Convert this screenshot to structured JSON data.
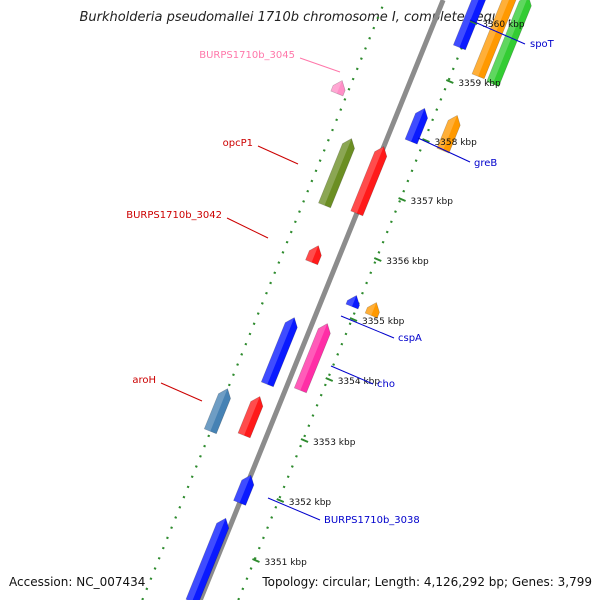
{
  "title": "Burkholderia pseudomallei 1710b chromosome I, complete seque...",
  "footer": {
    "accession": "Accession: NC_007434",
    "summary": "Topology: circular; Length: 4,126,292 bp; Genes: 3,799"
  },
  "colors": {
    "backbone": "#8c8c8c",
    "ticks": "#2e8b2e",
    "forward_label": "#0000cc",
    "reverse_label": "#cc0000",
    "pseudo_label": "#ff77aa",
    "kbp_label": "#111111"
  },
  "scale_labels": [
    "3351 kbp",
    "3352 kbp",
    "3353 kbp",
    "3354 kbp",
    "3355 kbp",
    "3356 kbp",
    "3357 kbp",
    "3358 kbp",
    "3359 kbp",
    "3360 kbp"
  ],
  "gene_labels": [
    {
      "text": "spoT",
      "strand": "forward"
    },
    {
      "text": "BURPS1710b_3045",
      "strand": "pseudo"
    },
    {
      "text": "greB",
      "strand": "forward"
    },
    {
      "text": "opcP1",
      "strand": "reverse"
    },
    {
      "text": "BURPS1710b_3042",
      "strand": "reverse"
    },
    {
      "text": "cspA",
      "strand": "forward"
    },
    {
      "text": "cho",
      "strand": "forward"
    },
    {
      "text": "aroH",
      "strand": "reverse"
    },
    {
      "text": "BURPS1710b_3038",
      "strand": "forward"
    }
  ],
  "features": [
    {
      "lane": "F1",
      "color": "#0a1aff"
    },
    {
      "lane": "F2",
      "color": "#ff9900"
    },
    {
      "lane": "F2",
      "color": "#33cc33"
    },
    {
      "lane": "R1",
      "color": "#ff8fc7"
    },
    {
      "lane": "F1",
      "color": "#0a1aff"
    },
    {
      "lane": "F2",
      "color": "#ff9900"
    },
    {
      "lane": "R2",
      "color": "#6b8e23"
    },
    {
      "lane": "R1",
      "color": "#ff1a1a"
    },
    {
      "lane": "R1",
      "color": "#ff1a1a"
    },
    {
      "lane": "F1",
      "color": "#0a1aff"
    },
    {
      "lane": "F2",
      "color": "#ff9900"
    },
    {
      "lane": "F1",
      "color": "#0a1aff"
    },
    {
      "lane": "F2",
      "color": "#ff2ea6"
    },
    {
      "lane": "R2",
      "color": "#4682b4"
    },
    {
      "lane": "R1",
      "color": "#ff1a1a"
    },
    {
      "lane": "F1",
      "color": "#0a1aff"
    },
    {
      "lane": "F1",
      "color": "#0a1aff"
    }
  ]
}
